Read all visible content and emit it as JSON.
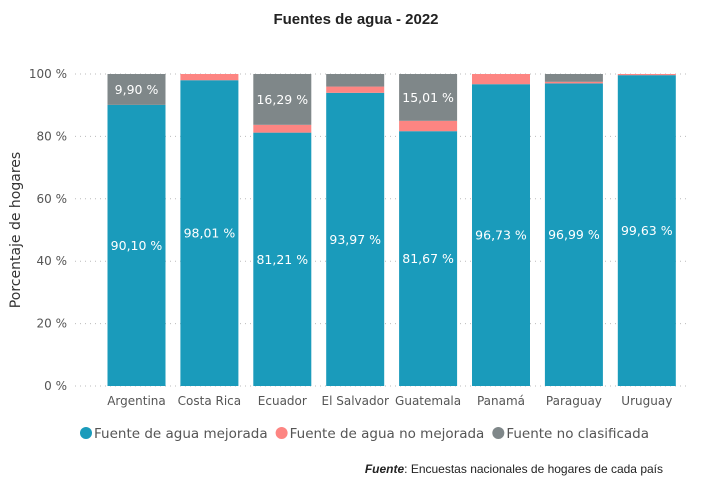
{
  "chart_data": {
    "type": "bar",
    "stacked": true,
    "title": "Fuentes de agua - 2022",
    "ylabel": "Porcentaje de hogares",
    "xlabel": "",
    "ylim": [
      0,
      100
    ],
    "yticks": [
      "0 %",
      "20 %",
      "40 %",
      "60 %",
      "80 %",
      "100 %"
    ],
    "grid": true,
    "legend_position": "bottom",
    "categories": [
      "Argentina",
      "Costa Rica",
      "Ecuador",
      "El Salvador",
      "Guatemala",
      "Panamá",
      "Paraguay",
      "Uruguay"
    ],
    "series": [
      {
        "name": "Fuente de agua mejorada",
        "color": "#1A9BBB",
        "values": [
          90.1,
          98.01,
          81.21,
          93.97,
          81.67,
          96.73,
          96.99,
          99.63
        ],
        "labels": [
          "90,10 %",
          "98,01 %",
          "81,21 %",
          "93,97 %",
          "81,67 %",
          "96,73 %",
          "96,99 %",
          "99,63 %"
        ]
      },
      {
        "name": "Fuente de agua no mejorada",
        "color": "#FD8582",
        "values": [
          0,
          1.99,
          2.5,
          2.0,
          3.32,
          3.27,
          0.5,
          0.37
        ],
        "labels": [
          null,
          null,
          null,
          null,
          null,
          null,
          null,
          null
        ]
      },
      {
        "name": "Fuente no clasificada",
        "color": "#7F8789",
        "values": [
          9.9,
          0,
          16.29,
          4.03,
          15.01,
          0,
          2.51,
          0
        ],
        "labels": [
          "9,90 %",
          null,
          "16,29 %",
          null,
          "15,01 %",
          null,
          null,
          null
        ]
      }
    ]
  },
  "source": {
    "label": "Fuente",
    "text": ": Encuestas nacionales de hogares de cada país"
  }
}
